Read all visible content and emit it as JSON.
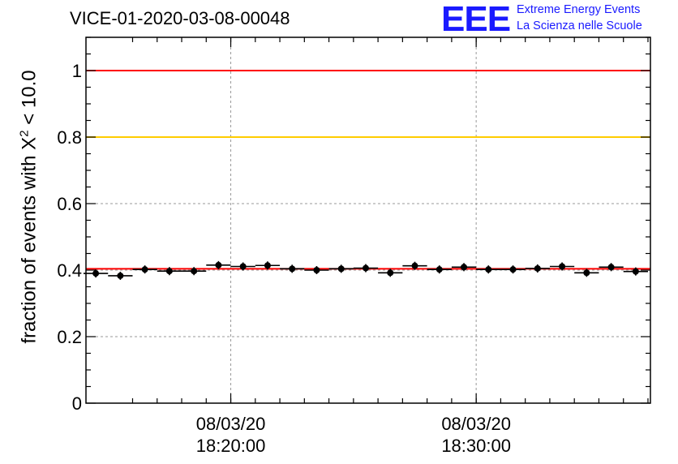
{
  "title": "VICE-01-2020-03-08-00048",
  "logo": {
    "mark": "EEE",
    "line1": "Extreme Energy Events",
    "line2": "La Scienza nelle Scuole"
  },
  "colors": {
    "logo": "#1a1aff",
    "threshold_line": "#ff0000",
    "reference_line": "#ffcc00",
    "fit_line": "#ff0000",
    "points": "#000000",
    "grid": "#999999"
  },
  "chart_data": {
    "type": "scatter",
    "title": "VICE-01-2020-03-08-00048",
    "ylabel": "fraction of events with Χ² < 10.0",
    "ylabel_parts": {
      "prefix": "fraction of events with X",
      "sup": "2",
      "suffix": " < 10.0"
    },
    "xlabel": "",
    "x_unit": "minutes after 08/03/20 18:15:00",
    "xlim": [
      0,
      23
    ],
    "ylim": [
      0,
      1.1
    ],
    "grid": true,
    "yticks": [
      {
        "value": 0,
        "label": "0"
      },
      {
        "value": 0.2,
        "label": "0.2"
      },
      {
        "value": 0.4,
        "label": "0.4"
      },
      {
        "value": 0.6,
        "label": "0.6"
      },
      {
        "value": 0.8,
        "label": "0.8"
      },
      {
        "value": 1,
        "label": "1"
      }
    ],
    "xticks": [
      {
        "value": 5.9,
        "date": "08/03/20",
        "time": "18:20:00"
      },
      {
        "value": 15.9,
        "date": "08/03/20",
        "time": "18:30:00"
      }
    ],
    "x_minor_step": 1,
    "x_minor_start": 1.9,
    "hlines": [
      {
        "y": 1.0,
        "color": "#ff0000"
      },
      {
        "y": 0.8,
        "color": "#ffcc00"
      },
      {
        "y": 0.404,
        "color": "#ff0000"
      }
    ],
    "series": [
      {
        "x_halfwidth": 0.5,
        "points": [
          {
            "x": 0.4,
            "y": 0.39
          },
          {
            "x": 1.4,
            "y": 0.383
          },
          {
            "x": 2.4,
            "y": 0.402
          },
          {
            "x": 3.4,
            "y": 0.397
          },
          {
            "x": 4.4,
            "y": 0.397
          },
          {
            "x": 5.4,
            "y": 0.415
          },
          {
            "x": 6.4,
            "y": 0.411
          },
          {
            "x": 7.4,
            "y": 0.414
          },
          {
            "x": 8.4,
            "y": 0.404
          },
          {
            "x": 9.4,
            "y": 0.4
          },
          {
            "x": 10.4,
            "y": 0.404
          },
          {
            "x": 11.4,
            "y": 0.406
          },
          {
            "x": 12.4,
            "y": 0.392
          },
          {
            "x": 13.4,
            "y": 0.413
          },
          {
            "x": 14.4,
            "y": 0.402
          },
          {
            "x": 15.4,
            "y": 0.409
          },
          {
            "x": 16.4,
            "y": 0.402
          },
          {
            "x": 17.4,
            "y": 0.402
          },
          {
            "x": 18.4,
            "y": 0.405
          },
          {
            "x": 19.4,
            "y": 0.411
          },
          {
            "x": 20.4,
            "y": 0.392
          },
          {
            "x": 21.4,
            "y": 0.409
          },
          {
            "x": 22.4,
            "y": 0.396
          }
        ]
      }
    ]
  }
}
